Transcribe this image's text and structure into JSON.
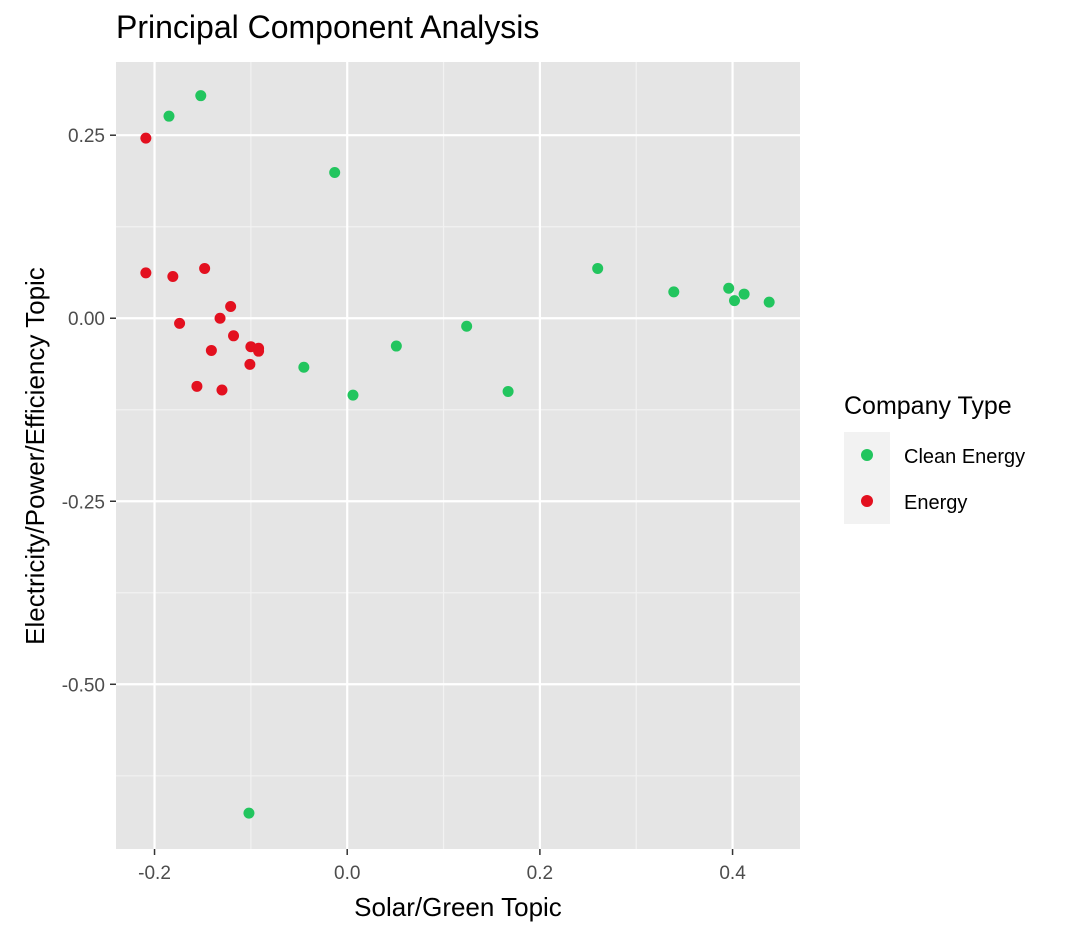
{
  "chart_data": {
    "type": "scatter",
    "title": "Principal Component Analysis",
    "xlabel": "Solar/Green Topic",
    "ylabel": "Electricity/Power/Efficiency Topic",
    "xlim": [
      -0.24,
      0.47
    ],
    "ylim": [
      -0.725,
      0.35
    ],
    "x_ticks": [
      -0.2,
      0.0,
      0.2,
      0.4
    ],
    "x_tick_labels": [
      "-0.2",
      "0.0",
      "0.2",
      "0.4"
    ],
    "y_ticks": [
      0.25,
      0.0,
      -0.25,
      -0.5
    ],
    "y_tick_labels": [
      "0.25",
      "0.00",
      "-0.25",
      "-0.50"
    ],
    "grid": true,
    "legend": {
      "title": "Company Type",
      "position": "right"
    },
    "series": [
      {
        "name": "Clean Energy",
        "color": "#22c55e",
        "points": [
          {
            "x": -0.185,
            "y": 0.276
          },
          {
            "x": -0.152,
            "y": 0.304
          },
          {
            "x": -0.013,
            "y": 0.199
          },
          {
            "x": 0.26,
            "y": 0.068
          },
          {
            "x": 0.339,
            "y": 0.036
          },
          {
            "x": 0.396,
            "y": 0.041
          },
          {
            "x": 0.402,
            "y": 0.024
          },
          {
            "x": 0.412,
            "y": 0.033
          },
          {
            "x": 0.438,
            "y": 0.022
          },
          {
            "x": 0.124,
            "y": -0.011
          },
          {
            "x": 0.051,
            "y": -0.038
          },
          {
            "x": -0.045,
            "y": -0.067
          },
          {
            "x": 0.006,
            "y": -0.105
          },
          {
            "x": 0.167,
            "y": -0.1
          },
          {
            "x": -0.102,
            "y": -0.676
          }
        ]
      },
      {
        "name": "Energy",
        "color": "#e3101f",
        "points": [
          {
            "x": -0.209,
            "y": 0.246
          },
          {
            "x": -0.209,
            "y": 0.062
          },
          {
            "x": -0.181,
            "y": 0.057
          },
          {
            "x": -0.148,
            "y": 0.068
          },
          {
            "x": -0.121,
            "y": 0.016
          },
          {
            "x": -0.174,
            "y": -0.007
          },
          {
            "x": -0.132,
            "y": 0.0
          },
          {
            "x": -0.118,
            "y": -0.024
          },
          {
            "x": -0.141,
            "y": -0.044
          },
          {
            "x": -0.1,
            "y": -0.039
          },
          {
            "x": -0.092,
            "y": -0.041
          },
          {
            "x": -0.092,
            "y": -0.045
          },
          {
            "x": -0.101,
            "y": -0.063
          },
          {
            "x": -0.156,
            "y": -0.093
          },
          {
            "x": -0.13,
            "y": -0.098
          }
        ]
      }
    ]
  }
}
